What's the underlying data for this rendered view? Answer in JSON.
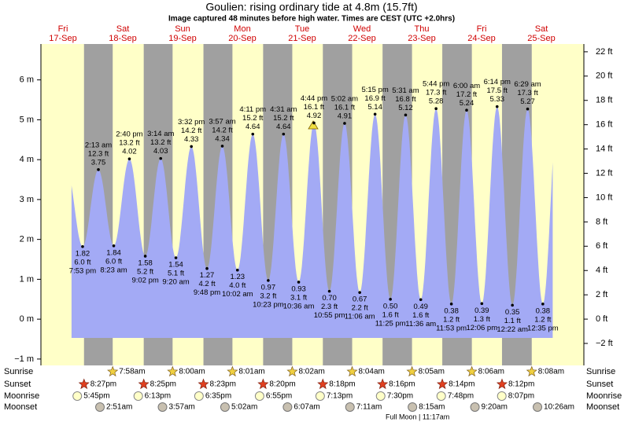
{
  "chart_data": {
    "type": "tide",
    "title": "Goulien: rising  ordinary tide at 4.8m (15.7ft)",
    "subtitle": "Image captured 48 minutes before high water. Times are CEST (UTC +2.0hrs)",
    "days": [
      {
        "weekday": "Fri",
        "date": "17-Sep"
      },
      {
        "weekday": "Sat",
        "date": "18-Sep"
      },
      {
        "weekday": "Sun",
        "date": "19-Sep"
      },
      {
        "weekday": "Mon",
        "date": "20-Sep"
      },
      {
        "weekday": "Tue",
        "date": "21-Sep"
      },
      {
        "weekday": "Wed",
        "date": "22-Sep"
      },
      {
        "weekday": "Thu",
        "date": "23-Sep"
      },
      {
        "weekday": "Fri",
        "date": "24-Sep"
      },
      {
        "weekday": "Sat",
        "date": "25-Sep"
      }
    ],
    "tides": {
      "color": "#a3aaf5",
      "dates": [
        "17-Sep",
        "18-Sep",
        "18-Sep",
        "18-Sep",
        "18-Sep",
        "19-Sep",
        "19-Sep",
        "19-Sep",
        "19-Sep",
        "20-Sep",
        "20-Sep",
        "20-Sep",
        "20-Sep",
        "21-Sep",
        "21-Sep",
        "21-Sep",
        "21-Sep",
        "22-Sep",
        "22-Sep",
        "22-Sep",
        "22-Sep",
        "23-Sep",
        "23-Sep",
        "23-Sep",
        "23-Sep",
        "24-Sep",
        "24-Sep",
        "24-Sep",
        "25-Sep",
        "25-Sep",
        "25-Sep"
      ],
      "times": [
        "7:53 pm",
        "2:13 am",
        "8:23 am",
        "2:40 pm",
        "9:02 pm",
        "3:14 am",
        "9:20 am",
        "3:32 pm",
        "9:48 pm",
        "3:57 am",
        "10:02 am",
        "4:11 pm",
        "10:23 pm",
        "4:31 am",
        "10:36 am",
        "4:44 pm",
        "10:55 pm",
        "5:02 am",
        "11:06 am",
        "5:15 pm",
        "11:25 pm",
        "5:31 am",
        "11:36 am",
        "5:44 pm",
        "11:53 pm",
        "6:00 am",
        "12:06 pm",
        "6:14 pm",
        "12:22 am",
        "6:29 am",
        "12:35 pm"
      ],
      "values": [
        1.82,
        3.75,
        1.84,
        4.02,
        1.58,
        4.03,
        1.54,
        4.33,
        1.27,
        4.34,
        1.23,
        4.64,
        0.97,
        4.64,
        0.93,
        4.92,
        0.7,
        4.91,
        0.67,
        5.14,
        0.5,
        5.12,
        0.49,
        5.28,
        0.38,
        5.24,
        0.39,
        5.33,
        0.35,
        5.27,
        0.38
      ],
      "value_labels": [
        "1.82",
        "3.75",
        "1.84",
        "4.02",
        "1.58",
        "4.03",
        "1.54",
        "4.33",
        "1.27",
        "4.34",
        "1.23",
        "4.64",
        "0.97",
        "4.64",
        "0.93",
        "4.92",
        "0.70",
        "4.91",
        "0.67",
        "5.14",
        "0.50",
        "5.12",
        "0.49",
        "5.28",
        "0.38",
        "5.24",
        "0.39",
        "5.33",
        "0.35",
        "5.27",
        "0.38"
      ],
      "ft_labels": [
        "6.0 ft",
        "12.3 ft",
        "6.0 ft",
        "13.2 ft",
        "5.2 ft",
        "13.2 ft",
        "5.1 ft",
        "14.2 ft",
        "4.2 ft",
        "14.2 ft",
        "4.0 ft",
        "15.2 ft",
        "3.2 ft",
        "15.2 ft",
        "3.1 ft",
        "16.1 ft",
        "2.3 ft",
        "16.1 ft",
        "2.2 ft",
        "16.9 ft",
        "1.6 ft",
        "16.8 ft",
        "1.6 ft",
        "17.3 ft",
        "1.2 ft",
        "17.2 ft",
        "1.3 ft",
        "17.5 ft",
        "1.1 ft",
        "17.3 ft",
        "1.2 ft"
      ]
    },
    "ylim": [
      -1.16,
      6.9
    ],
    "yticks": [
      {
        "value": -1,
        "label": "−1 m"
      },
      {
        "value": 0,
        "label": "0 m"
      },
      {
        "value": 1,
        "label": "1 m"
      },
      {
        "value": 2,
        "label": "2 m"
      },
      {
        "value": 3,
        "label": "3 m"
      },
      {
        "value": 4,
        "label": "4 m"
      },
      {
        "value": 5,
        "label": "5 m"
      },
      {
        "value": 6,
        "label": "6 m"
      }
    ],
    "y2lim": [
      -3.81,
      22.64
    ],
    "y2ticks": [
      {
        "value": -2,
        "label": "−2 ft"
      },
      {
        "value": 0,
        "label": "0 ft"
      },
      {
        "value": 2,
        "label": "2 ft"
      },
      {
        "value": 4,
        "label": "4 ft"
      },
      {
        "value": 6,
        "label": "6 ft"
      },
      {
        "value": 8,
        "label": "8 ft"
      },
      {
        "value": 10,
        "label": "10 ft"
      },
      {
        "value": 12,
        "label": "12 ft"
      },
      {
        "value": 14,
        "label": "14 ft"
      },
      {
        "value": 16,
        "label": "16 ft"
      },
      {
        "value": 18,
        "label": "18 ft"
      },
      {
        "value": 20,
        "label": "20 ft"
      },
      {
        "value": 22,
        "label": "22 ft"
      }
    ],
    "row_labels": [
      "Sunrise",
      "Sunset",
      "Moonrise",
      "Moonset"
    ],
    "sunrise": [
      {
        "date": "18-Sep",
        "time": "7:58am"
      },
      {
        "date": "19-Sep",
        "time": "8:00am"
      },
      {
        "date": "20-Sep",
        "time": "8:01am"
      },
      {
        "date": "21-Sep",
        "time": "8:02am"
      },
      {
        "date": "22-Sep",
        "time": "8:04am"
      },
      {
        "date": "23-Sep",
        "time": "8:05am"
      },
      {
        "date": "24-Sep",
        "time": "8:06am"
      },
      {
        "date": "25-Sep",
        "time": "8:08am"
      }
    ],
    "sunset": [
      {
        "date": "17-Sep",
        "time": "8:27pm"
      },
      {
        "date": "18-Sep",
        "time": "8:25pm"
      },
      {
        "date": "19-Sep",
        "time": "8:23pm"
      },
      {
        "date": "20-Sep",
        "time": "8:20pm"
      },
      {
        "date": "21-Sep",
        "time": "8:18pm"
      },
      {
        "date": "22-Sep",
        "time": "8:16pm"
      },
      {
        "date": "23-Sep",
        "time": "8:14pm"
      },
      {
        "date": "24-Sep",
        "time": "8:12pm"
      }
    ],
    "moonrise": [
      {
        "date": "17-Sep",
        "time": "5:45pm"
      },
      {
        "date": "18-Sep",
        "time": "6:13pm"
      },
      {
        "date": "19-Sep",
        "time": "6:35pm"
      },
      {
        "date": "20-Sep",
        "time": "6:55pm"
      },
      {
        "date": "21-Sep",
        "time": "7:13pm"
      },
      {
        "date": "22-Sep",
        "time": "7:30pm"
      },
      {
        "date": "23-Sep",
        "time": "7:48pm"
      },
      {
        "date": "24-Sep",
        "time": "8:07pm"
      }
    ],
    "moonset": [
      {
        "date": "18-Sep",
        "time": "2:51am"
      },
      {
        "date": "19-Sep",
        "time": "3:57am"
      },
      {
        "date": "20-Sep",
        "time": "5:02am"
      },
      {
        "date": "21-Sep",
        "time": "6:07am"
      },
      {
        "date": "22-Sep",
        "time": "7:11am"
      },
      {
        "date": "23-Sep",
        "time": "8:15am"
      },
      {
        "date": "24-Sep",
        "time": "9:20am"
      },
      {
        "date": "25-Sep",
        "time": "10:26am"
      }
    ],
    "moon_phase": "Full Moon | 11:17am"
  }
}
